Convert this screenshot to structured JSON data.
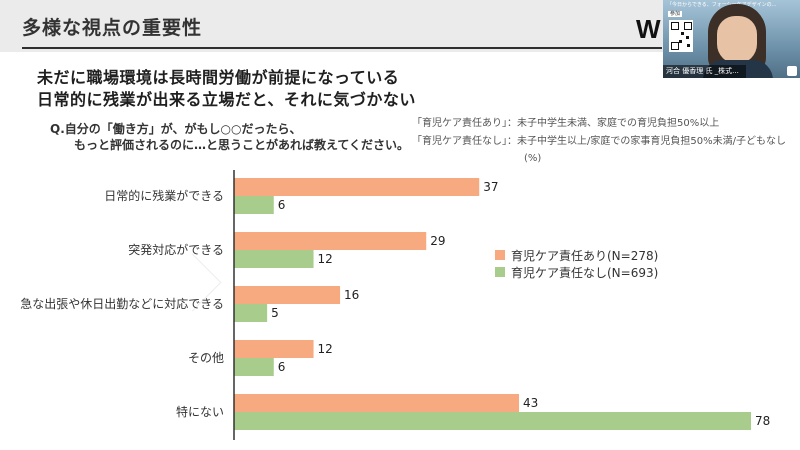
{
  "header": {
    "title": "多様な視点の重要性",
    "logo_text": "W"
  },
  "video": {
    "caption": "「今日からできる、フォーシーケアデザインの...",
    "badge": "参加",
    "name": "河合 優香理 氏 _株式..."
  },
  "headline": {
    "line1": "未だに職場環境は長時間労働が前提になっている",
    "line2": "日常的に残業が出来る立場だと、それに気づかない"
  },
  "question": {
    "line1": "Q.自分の「働き方」が、がもし○○だったら、",
    "line2": "もっと評価されるのに…と思うことがあれば教えてください。"
  },
  "legend_notes": {
    "line1": "「育児ケア責任あり」：未子中学生未満、家庭での育児負担50%以上",
    "line2": "「育児ケア責任なし」：未子中学生以上/家庭での家事育児負担50%未満/子どもなし"
  },
  "unit": "(%)",
  "colors": {
    "series_a": "#f7a97f",
    "series_b": "#a8cc8c",
    "axis": "#333333"
  },
  "chart_data": {
    "type": "bar",
    "orientation": "horizontal",
    "categories": [
      "日常的に残業ができる",
      "突発対応ができる",
      "急な出張や休日出勤などに対応できる",
      "その他",
      "特にない"
    ],
    "series": [
      {
        "name": "育児ケア責任あり(N=278)",
        "values": [
          37,
          29,
          16,
          12,
          43
        ]
      },
      {
        "name": "育児ケア責任なし(N=693)",
        "values": [
          6,
          12,
          5,
          6,
          78
        ]
      }
    ],
    "xlim": [
      0,
      78
    ],
    "grid": false,
    "legend_position": "right"
  }
}
